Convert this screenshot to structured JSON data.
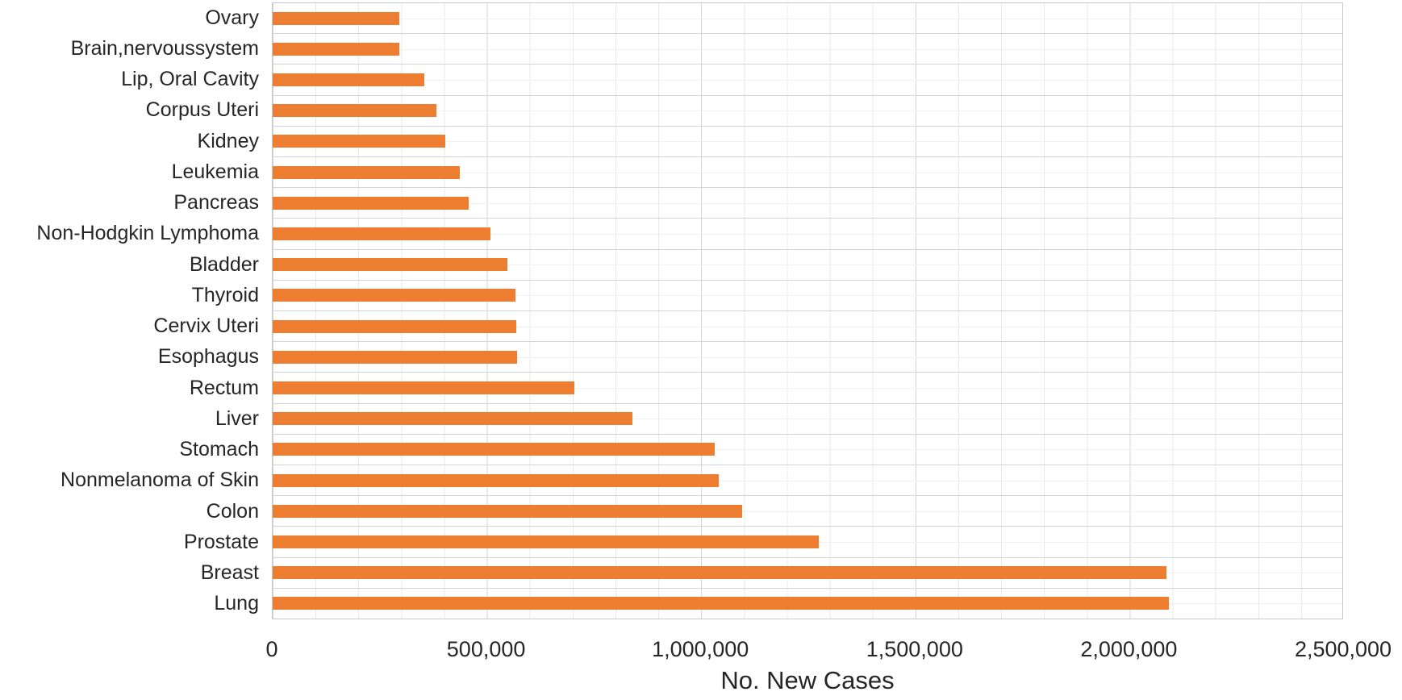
{
  "chart_data": {
    "type": "bar",
    "orientation": "horizontal",
    "title": "",
    "xlabel": "No. New Cases",
    "ylabel": "",
    "xlim": [
      0,
      2500000
    ],
    "x_tick_labels": [
      "0",
      "500,000",
      "1,000,000",
      "1,500,000",
      "2,000,000",
      "2,500,000"
    ],
    "minor_grid_interval": 100000,
    "major_grid_interval": 500000,
    "grid": true,
    "legend": null,
    "categories": [
      "Ovary",
      "Brain,nervoussystem",
      "Lip, Oral Cavity",
      "Corpus Uteri",
      "Kidney",
      "Leukemia",
      "Pancreas",
      "Non-Hodgkin Lymphoma",
      "Bladder",
      "Thyroid",
      "Cervix Uteri",
      "Esophagus",
      "Rectum",
      "Liver",
      "Stomach",
      "Nonmelanoma of Skin",
      "Colon",
      "Prostate",
      "Breast",
      "Lung"
    ],
    "values": [
      295414,
      296851,
      354864,
      382069,
      403262,
      437033,
      458918,
      509590,
      549393,
      567233,
      569847,
      572034,
      704376,
      841080,
      1033701,
      1042056,
      1096601,
      1276106,
      2088849,
      2093876
    ],
    "bar_color": "#ED7D31"
  },
  "colors": {
    "bar": "#ED7D31",
    "text": "#262626",
    "major_gridline": "#d4d4d4",
    "minor_gridline": "#e9e9e9",
    "row_center_gridline": "#f1f1f1",
    "plot_border": "#c9c9c9",
    "background": "#ffffff"
  }
}
